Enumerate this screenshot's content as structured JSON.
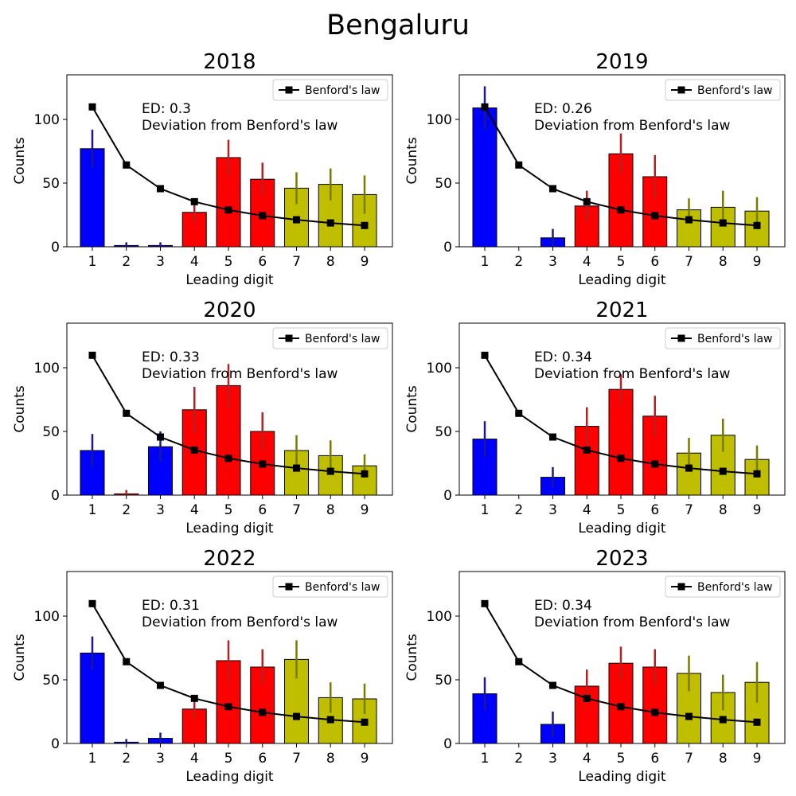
{
  "figure_title": "Bengaluru",
  "colors": {
    "low": "#0000ff",
    "mid": "#ff0000",
    "high": "#bfbf00",
    "err_low": "#1a1a8c",
    "err_mid": "#b22222",
    "err_high": "#7a7a00",
    "benford": "#000000"
  },
  "chart_data": [
    {
      "type": "bar",
      "title": "2018",
      "xlabel": "Leading digit",
      "ylabel": "Counts",
      "categories": [
        "1",
        "2",
        "3",
        "4",
        "5",
        "6",
        "7",
        "8",
        "9"
      ],
      "values": [
        77,
        1,
        1,
        27,
        70,
        53,
        46,
        49,
        41
      ],
      "errors": [
        15,
        2.5,
        2.5,
        8.5,
        14,
        13,
        12.5,
        12.5,
        15
      ],
      "color_groups": [
        "low",
        "low",
        "low",
        "mid",
        "mid",
        "mid",
        "high",
        "high",
        "high"
      ],
      "benford": [
        109.8,
        64.2,
        45.6,
        35.4,
        28.9,
        24.4,
        21.2,
        18.7,
        16.7
      ],
      "benford_label": "Benford's law",
      "annotation": [
        "ED: 0.3",
        "Deviation from Benford's law"
      ],
      "ylim": [
        0,
        135
      ],
      "yticks": [
        0,
        50,
        100
      ],
      "legend_position": "upper right"
    },
    {
      "type": "bar",
      "title": "2019",
      "xlabel": "Leading digit",
      "ylabel": "Counts",
      "categories": [
        "1",
        "2",
        "3",
        "4",
        "5",
        "6",
        "7",
        "8",
        "9"
      ],
      "values": [
        109,
        0,
        7,
        32,
        73,
        55,
        29,
        31,
        28
      ],
      "errors": [
        17,
        0,
        7,
        12,
        16,
        17,
        9,
        13,
        11
      ],
      "color_groups": [
        "low",
        "low",
        "low",
        "mid",
        "mid",
        "mid",
        "high",
        "high",
        "high"
      ],
      "benford": [
        109.8,
        64.2,
        45.6,
        35.4,
        28.9,
        24.4,
        21.2,
        18.7,
        16.7
      ],
      "benford_label": "Benford's law",
      "annotation": [
        "ED: 0.26",
        "Deviation from Benford's law"
      ],
      "ylim": [
        0,
        135
      ],
      "yticks": [
        0,
        50,
        100
      ],
      "legend_position": "upper right"
    },
    {
      "type": "bar",
      "title": "2020",
      "xlabel": "Leading digit",
      "ylabel": "Counts",
      "categories": [
        "1",
        "2",
        "3",
        "4",
        "5",
        "6",
        "7",
        "8",
        "9"
      ],
      "values": [
        35,
        1,
        38,
        67,
        86,
        50,
        35,
        31,
        23
      ],
      "errors": [
        13,
        3,
        12,
        18,
        17,
        15,
        12,
        12,
        9
      ],
      "color_groups": [
        "low",
        "mid",
        "low",
        "mid",
        "mid",
        "mid",
        "high",
        "high",
        "high"
      ],
      "benford": [
        109.8,
        64.2,
        45.6,
        35.4,
        28.9,
        24.4,
        21.2,
        18.7,
        16.7
      ],
      "benford_label": "Benford's law",
      "annotation": [
        "ED: 0.33",
        "Deviation from Benford's law"
      ],
      "ylim": [
        0,
        135
      ],
      "yticks": [
        0,
        50,
        100
      ],
      "legend_position": "upper right"
    },
    {
      "type": "bar",
      "title": "2021",
      "xlabel": "Leading digit",
      "ylabel": "Counts",
      "categories": [
        "1",
        "2",
        "3",
        "4",
        "5",
        "6",
        "7",
        "8",
        "9"
      ],
      "values": [
        44,
        0,
        14,
        54,
        83,
        62,
        33,
        47,
        28
      ],
      "errors": [
        14,
        0,
        8,
        15,
        12,
        16,
        12,
        13,
        11
      ],
      "color_groups": [
        "low",
        "low",
        "low",
        "mid",
        "mid",
        "mid",
        "high",
        "high",
        "high"
      ],
      "benford": [
        109.8,
        64.2,
        45.6,
        35.4,
        28.9,
        24.4,
        21.2,
        18.7,
        16.7
      ],
      "benford_label": "Benford's law",
      "annotation": [
        "ED: 0.34",
        "Deviation from Benford's law"
      ],
      "ylim": [
        0,
        135
      ],
      "yticks": [
        0,
        50,
        100
      ],
      "legend_position": "upper right"
    },
    {
      "type": "bar",
      "title": "2022",
      "xlabel": "Leading digit",
      "ylabel": "Counts",
      "categories": [
        "1",
        "2",
        "3",
        "4",
        "5",
        "6",
        "7",
        "8",
        "9"
      ],
      "values": [
        71,
        1,
        4,
        27,
        65,
        60,
        66,
        36,
        35
      ],
      "errors": [
        13,
        2.5,
        4.5,
        8,
        16,
        14,
        15,
        12,
        12
      ],
      "color_groups": [
        "low",
        "low",
        "low",
        "mid",
        "mid",
        "mid",
        "high",
        "high",
        "high"
      ],
      "benford": [
        109.8,
        64.2,
        45.6,
        35.4,
        28.9,
        24.4,
        21.2,
        18.7,
        16.7
      ],
      "benford_label": "Benford's law",
      "annotation": [
        "ED: 0.31",
        "Deviation from Benford's law"
      ],
      "ylim": [
        0,
        135
      ],
      "yticks": [
        0,
        50,
        100
      ],
      "legend_position": "upper right"
    },
    {
      "type": "bar",
      "title": "2023",
      "xlabel": "Leading digit",
      "ylabel": "Counts",
      "categories": [
        "1",
        "2",
        "3",
        "4",
        "5",
        "6",
        "7",
        "8",
        "9"
      ],
      "values": [
        39,
        0,
        15,
        45,
        63,
        60,
        55,
        40,
        48
      ],
      "errors": [
        13,
        0,
        10,
        13,
        13,
        14,
        14,
        14,
        16
      ],
      "color_groups": [
        "low",
        "low",
        "low",
        "mid",
        "mid",
        "mid",
        "high",
        "high",
        "high"
      ],
      "benford": [
        109.8,
        64.2,
        45.6,
        35.4,
        28.9,
        24.4,
        21.2,
        18.7,
        16.7
      ],
      "benford_label": "Benford's law",
      "annotation": [
        "ED: 0.34",
        "Deviation from Benford's law"
      ],
      "ylim": [
        0,
        135
      ],
      "yticks": [
        0,
        50,
        100
      ],
      "legend_position": "upper right"
    }
  ]
}
